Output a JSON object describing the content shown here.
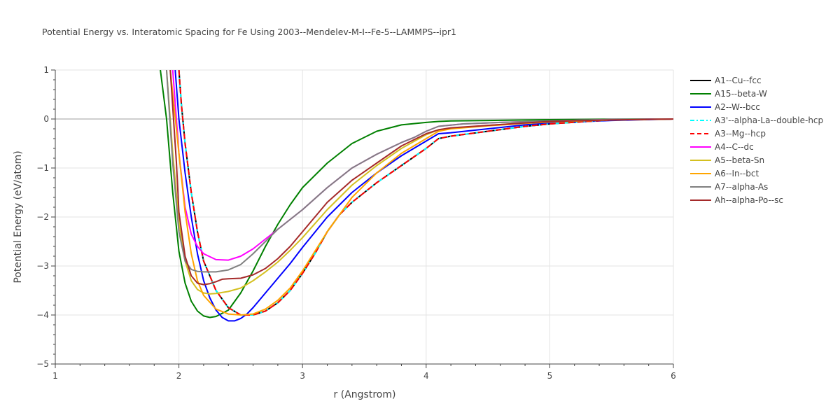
{
  "chart_data": {
    "type": "line",
    "title": "Potential Energy vs. Interatomic Spacing for Fe Using 2003--Mendelev-M-I--Fe-5--LAMMPS--ipr1",
    "xlabel": "r (Angstrom)",
    "ylabel": "Potential Energy (eV/atom)",
    "xlim": [
      1,
      6
    ],
    "ylim": [
      -5,
      1
    ],
    "xticks": [
      "1",
      "2",
      "3",
      "4",
      "5",
      "6"
    ],
    "yticks": [
      "1",
      "0",
      "−1",
      "−2",
      "−3",
      "−4",
      "−5"
    ],
    "grid": true,
    "legend_position": "right",
    "series": [
      {
        "name": "A1--Cu--fcc",
        "color": "#000000",
        "dash": "solid",
        "x": [
          2.0,
          2.02,
          2.05,
          2.1,
          2.15,
          2.2,
          2.3,
          2.4,
          2.5,
          2.6,
          2.7,
          2.8,
          2.9,
          3.0,
          3.1,
          3.2,
          3.3,
          3.4,
          3.6,
          3.8,
          4.0,
          4.1,
          4.2,
          4.5,
          4.8,
          5.0,
          5.3,
          5.5,
          6.0
        ],
        "y": [
          1.0,
          0.3,
          -0.5,
          -1.5,
          -2.3,
          -2.9,
          -3.5,
          -3.85,
          -4.0,
          -4.0,
          -3.92,
          -3.75,
          -3.5,
          -3.15,
          -2.75,
          -2.3,
          -1.95,
          -1.7,
          -1.3,
          -0.95,
          -0.6,
          -0.4,
          -0.35,
          -0.25,
          -0.15,
          -0.1,
          -0.05,
          -0.02,
          0.0
        ]
      },
      {
        "name": "A15--beta-W",
        "color": "#008000",
        "dash": "solid",
        "x": [
          1.85,
          1.9,
          1.95,
          2.0,
          2.05,
          2.1,
          2.15,
          2.2,
          2.25,
          2.3,
          2.4,
          2.5,
          2.6,
          2.7,
          2.8,
          2.9,
          3.0,
          3.2,
          3.4,
          3.6,
          3.8,
          4.0,
          4.1,
          4.2,
          4.5,
          4.8,
          5.0,
          5.5,
          6.0
        ],
        "y": [
          1.0,
          0.0,
          -1.5,
          -2.7,
          -3.35,
          -3.72,
          -3.92,
          -4.02,
          -4.05,
          -4.03,
          -3.9,
          -3.55,
          -3.1,
          -2.6,
          -2.15,
          -1.75,
          -1.4,
          -0.9,
          -0.5,
          -0.25,
          -0.12,
          -0.07,
          -0.05,
          -0.04,
          -0.03,
          -0.02,
          -0.015,
          -0.005,
          0.0
        ]
      },
      {
        "name": "A2--W--bcc",
        "color": "#0000ff",
        "dash": "solid",
        "x": [
          1.97,
          2.0,
          2.05,
          2.1,
          2.15,
          2.2,
          2.25,
          2.3,
          2.35,
          2.4,
          2.45,
          2.5,
          2.55,
          2.6,
          2.7,
          2.8,
          2.9,
          3.0,
          3.2,
          3.4,
          3.6,
          3.8,
          4.0,
          4.1,
          4.2,
          4.5,
          4.8,
          5.0,
          5.5,
          6.0
        ],
        "y": [
          1.0,
          0.0,
          -1.1,
          -2.0,
          -2.75,
          -3.3,
          -3.65,
          -3.9,
          -4.05,
          -4.12,
          -4.12,
          -4.07,
          -3.98,
          -3.85,
          -3.55,
          -3.25,
          -2.95,
          -2.62,
          -2.0,
          -1.5,
          -1.1,
          -0.75,
          -0.45,
          -0.3,
          -0.28,
          -0.2,
          -0.12,
          -0.08,
          -0.03,
          0.0
        ]
      },
      {
        "name": "A3'--alpha-La--double-hcp",
        "color": "#00ffff",
        "dash": "dashdot",
        "x": [
          2.0,
          2.02,
          2.05,
          2.1,
          2.15,
          2.2,
          2.3,
          2.4,
          2.5,
          2.6,
          2.7,
          2.8,
          2.9,
          3.0,
          3.1,
          3.2,
          3.3,
          3.4,
          3.6,
          3.8,
          4.0,
          4.1,
          4.2,
          4.5,
          4.8,
          5.0,
          5.3,
          5.5,
          6.0
        ],
        "y": [
          1.0,
          0.3,
          -0.5,
          -1.5,
          -2.3,
          -2.9,
          -3.5,
          -3.85,
          -4.0,
          -4.0,
          -3.92,
          -3.75,
          -3.5,
          -3.15,
          -2.75,
          -2.3,
          -1.95,
          -1.7,
          -1.3,
          -0.95,
          -0.6,
          -0.4,
          -0.35,
          -0.25,
          -0.15,
          -0.1,
          -0.05,
          -0.02,
          0.0
        ]
      },
      {
        "name": "A3--Mg--hcp",
        "color": "#ff0000",
        "dash": "dash",
        "x": [
          2.0,
          2.02,
          2.05,
          2.1,
          2.15,
          2.2,
          2.3,
          2.4,
          2.5,
          2.6,
          2.7,
          2.8,
          2.9,
          3.0,
          3.1,
          3.2,
          3.3,
          3.4,
          3.6,
          3.8,
          4.0,
          4.1,
          4.2,
          4.5,
          4.8,
          5.0,
          5.3,
          5.5,
          6.0
        ],
        "y": [
          1.0,
          0.3,
          -0.5,
          -1.5,
          -2.3,
          -2.9,
          -3.5,
          -3.85,
          -4.0,
          -4.0,
          -3.92,
          -3.75,
          -3.5,
          -3.15,
          -2.75,
          -2.3,
          -1.95,
          -1.7,
          -1.3,
          -0.95,
          -0.6,
          -0.4,
          -0.35,
          -0.25,
          -0.15,
          -0.1,
          -0.05,
          -0.02,
          0.0
        ]
      },
      {
        "name": "A4--C--dc",
        "color": "#ff00ff",
        "dash": "solid",
        "x": [
          1.95,
          2.0,
          2.05,
          2.1,
          2.15,
          2.2,
          2.3,
          2.4,
          2.5,
          2.6,
          2.7,
          2.8,
          3.0,
          3.2,
          3.4,
          3.6,
          3.8,
          3.9,
          4.0,
          4.1,
          4.3,
          4.6,
          5.0,
          5.5,
          6.0
        ],
        "y": [
          1.0,
          -0.7,
          -1.8,
          -2.35,
          -2.6,
          -2.75,
          -2.87,
          -2.88,
          -2.8,
          -2.65,
          -2.45,
          -2.25,
          -1.85,
          -1.4,
          -1.0,
          -0.72,
          -0.48,
          -0.38,
          -0.25,
          -0.15,
          -0.1,
          -0.07,
          -0.04,
          -0.01,
          0.0
        ]
      },
      {
        "name": "A5--beta-Sn",
        "color": "#d4c020",
        "dash": "solid",
        "x": [
          1.9,
          1.95,
          2.0,
          2.05,
          2.1,
          2.15,
          2.2,
          2.25,
          2.3,
          2.4,
          2.5,
          2.6,
          2.7,
          2.8,
          2.9,
          3.0,
          3.2,
          3.4,
          3.6,
          3.8,
          4.0,
          4.1,
          4.2,
          4.5,
          4.8,
          5.0,
          5.5,
          6.0
        ],
        "y": [
          1.0,
          -0.7,
          -2.1,
          -2.9,
          -3.3,
          -3.48,
          -3.55,
          -3.57,
          -3.56,
          -3.52,
          -3.45,
          -3.3,
          -3.12,
          -2.92,
          -2.68,
          -2.42,
          -1.85,
          -1.35,
          -0.95,
          -0.6,
          -0.32,
          -0.22,
          -0.19,
          -0.13,
          -0.08,
          -0.05,
          -0.02,
          0.0
        ]
      },
      {
        "name": "A6--In--bct",
        "color": "#ffa500",
        "dash": "solid",
        "x": [
          1.93,
          2.0,
          2.05,
          2.1,
          2.15,
          2.2,
          2.3,
          2.4,
          2.5,
          2.6,
          2.7,
          2.8,
          2.9,
          3.0,
          3.2,
          3.4,
          3.6,
          3.8,
          4.0,
          4.1,
          4.2,
          4.5,
          4.8,
          5.0,
          5.5,
          6.0
        ],
        "y": [
          1.0,
          -0.7,
          -1.9,
          -2.75,
          -3.3,
          -3.6,
          -3.88,
          -3.98,
          -4.0,
          -3.98,
          -3.88,
          -3.7,
          -3.45,
          -3.1,
          -2.3,
          -1.6,
          -1.1,
          -0.7,
          -0.4,
          -0.25,
          -0.2,
          -0.14,
          -0.09,
          -0.06,
          -0.02,
          0.0
        ]
      },
      {
        "name": "A7--alpha-As",
        "color": "#808080",
        "dash": "solid",
        "x": [
          1.9,
          1.95,
          2.0,
          2.05,
          2.1,
          2.15,
          2.2,
          2.3,
          2.4,
          2.5,
          2.6,
          2.7,
          2.8,
          3.0,
          3.2,
          3.4,
          3.6,
          3.8,
          3.9,
          4.0,
          4.1,
          4.3,
          4.6,
          5.0,
          5.5,
          6.0
        ],
        "y": [
          1.0,
          -0.9,
          -2.3,
          -2.9,
          -3.07,
          -3.11,
          -3.12,
          -3.12,
          -3.08,
          -2.97,
          -2.75,
          -2.5,
          -2.25,
          -1.85,
          -1.4,
          -1.0,
          -0.72,
          -0.48,
          -0.38,
          -0.25,
          -0.15,
          -0.1,
          -0.07,
          -0.04,
          -0.01,
          0.0
        ]
      },
      {
        "name": "Ah--alpha-Po--sc",
        "color": "#a52a2a",
        "dash": "solid",
        "x": [
          1.93,
          1.98,
          2.0,
          2.05,
          2.1,
          2.15,
          2.2,
          2.25,
          2.3,
          2.35,
          2.4,
          2.5,
          2.6,
          2.7,
          2.8,
          2.9,
          3.0,
          3.2,
          3.4,
          3.6,
          3.8,
          4.0,
          4.1,
          4.2,
          4.5,
          4.8,
          5.0,
          5.5,
          6.0
        ],
        "y": [
          1.0,
          -0.9,
          -1.9,
          -2.8,
          -3.2,
          -3.35,
          -3.38,
          -3.36,
          -3.32,
          -3.27,
          -3.26,
          -3.25,
          -3.18,
          -3.05,
          -2.85,
          -2.6,
          -2.3,
          -1.7,
          -1.25,
          -0.9,
          -0.55,
          -0.3,
          -0.22,
          -0.18,
          -0.13,
          -0.08,
          -0.05,
          -0.02,
          0.0
        ]
      }
    ]
  }
}
